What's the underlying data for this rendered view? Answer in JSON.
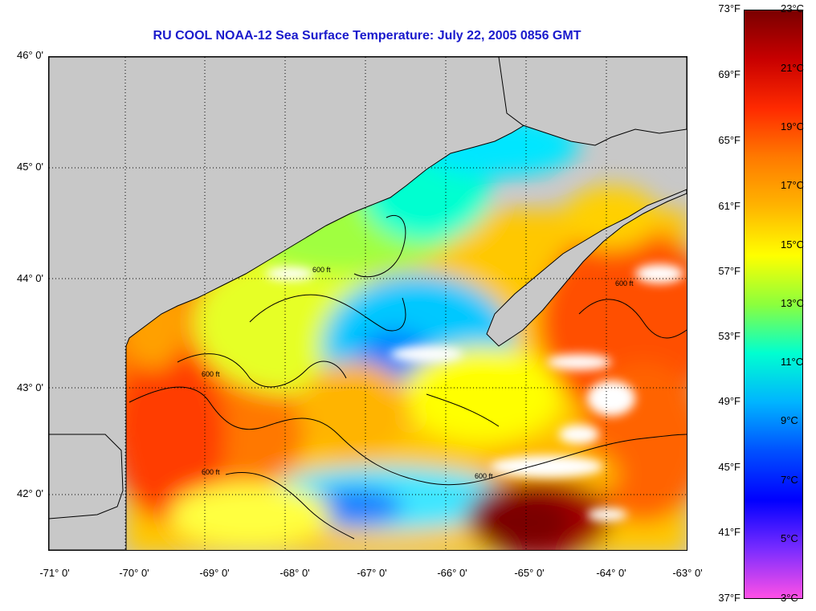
{
  "title": "RU COOL  NOAA-12  Sea Surface Temperature:  July 22, 2005 0856 GMT",
  "colors": {
    "land": "#c8c8c8",
    "cloud": "#ffffff",
    "coast": "#000000",
    "title": "#1a1acc"
  },
  "lat_labels": [
    "46° 0'",
    "45° 0'",
    "44° 0'",
    "43° 0'",
    "42° 0'"
  ],
  "lon_labels": [
    "-71° 0'",
    "-70° 0'",
    "-69° 0'",
    "-68° 0'",
    "-67° 0'",
    "-66° 0'",
    "-65° 0'",
    "-64° 0'",
    "-63° 0'"
  ],
  "contour_label": "600 ft",
  "colorbar": {
    "f_labels": [
      "73°F",
      "69°F",
      "65°F",
      "61°F",
      "57°F",
      "53°F",
      "49°F",
      "45°F",
      "41°F",
      "37°F"
    ],
    "c_labels": [
      "23°C",
      "21°C",
      "19°C",
      "17°C",
      "15°C",
      "13°C",
      "11°C",
      "9°C",
      "7°C",
      "5°C",
      "3°C"
    ],
    "stops": [
      "#7a0000",
      "#c80000",
      "#ff2a00",
      "#ff7a00",
      "#ffb400",
      "#ffff00",
      "#8cff3c",
      "#00ffd0",
      "#00b4ff",
      "#0050ff",
      "#0000ff",
      "#7a2cff",
      "#ff50e6"
    ]
  }
}
